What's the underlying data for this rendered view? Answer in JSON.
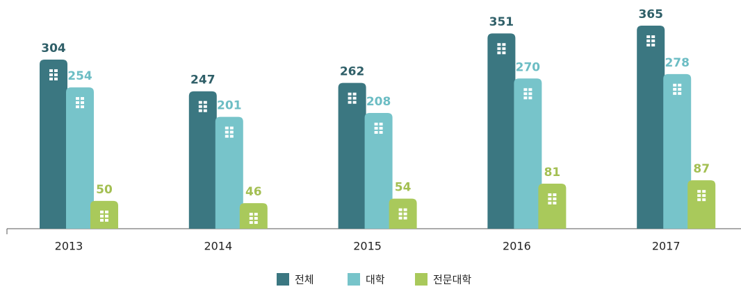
{
  "chart_data": {
    "type": "bar",
    "categories": [
      "2013",
      "2014",
      "2015",
      "2016",
      "2017"
    ],
    "series": [
      {
        "name": "전체",
        "color": "#3b7781",
        "label_color": "#2f5f68",
        "values": [
          304,
          247,
          262,
          351,
          365
        ]
      },
      {
        "name": "대학",
        "color": "#77c4ca",
        "label_color": "#6cbdc4",
        "values": [
          254,
          201,
          208,
          270,
          278
        ]
      },
      {
        "name": "전문대학",
        "color": "#a9c95b",
        "label_color": "#a3bf52",
        "values": [
          50,
          46,
          54,
          81,
          87
        ]
      }
    ]
  }
}
